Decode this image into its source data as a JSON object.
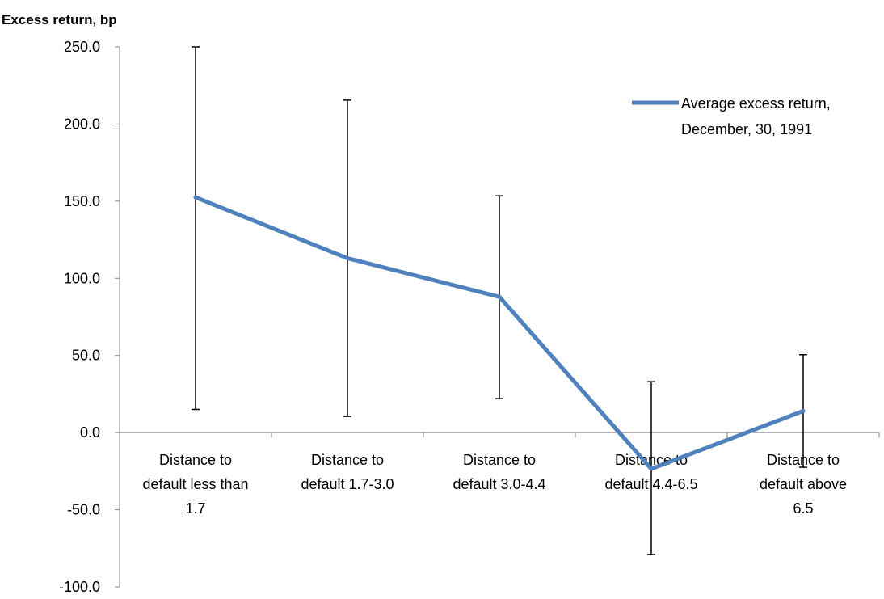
{
  "chart_data": {
    "type": "line",
    "title": "",
    "ylabel": "Excess return, bp",
    "xlabel": "",
    "ylim": [
      -100,
      250
    ],
    "yticks": [
      -100.0,
      -50.0,
      0.0,
      50.0,
      100.0,
      150.0,
      200.0,
      250.0
    ],
    "ytick_labels": [
      "-100.0",
      "-50.0",
      "0.0",
      "50.0",
      "100.0",
      "150.0",
      "200.0",
      "250.0"
    ],
    "categories": [
      [
        "Distance to",
        "default less than",
        "1.7"
      ],
      [
        "Distance to",
        "default 1.7-3.0"
      ],
      [
        "Distance to",
        "default 3.0-4.4"
      ],
      [
        "Distance to",
        "default 4.4-6.5"
      ],
      [
        "Distance to",
        "default above",
        "6.5"
      ]
    ],
    "series": [
      {
        "name": "Average excess return, December, 30, 1991",
        "legend_lines": [
          "Average excess return,",
          "December, 30, 1991"
        ],
        "color": "#4F81BD",
        "values": [
          152.5,
          113.0,
          88.0,
          -23.5,
          14.0
        ],
        "error_low": [
          15.0,
          10.5,
          22.0,
          -79.0,
          -22.5
        ],
        "error_high": [
          250.0,
          215.5,
          153.5,
          33.0,
          50.5
        ]
      }
    ],
    "grid": false,
    "legend_position": "top-right",
    "axis_color": "#868686",
    "error_bar_color": "#000000"
  }
}
